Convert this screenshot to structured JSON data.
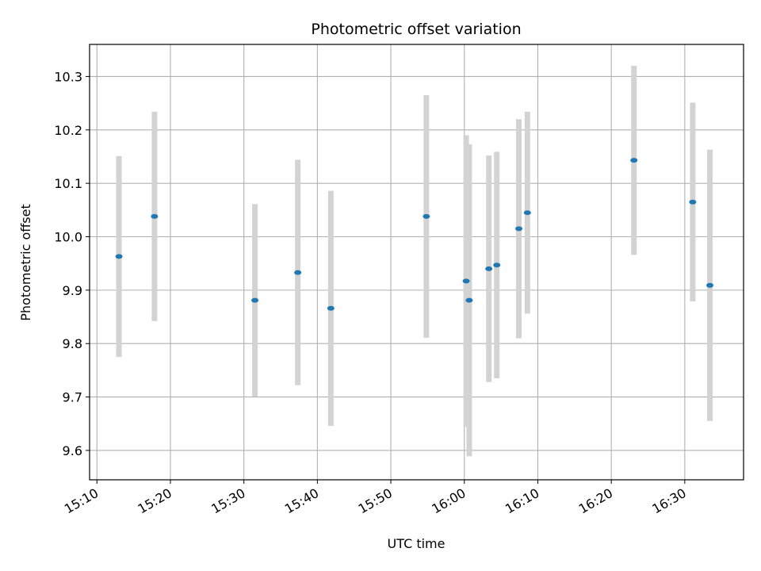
{
  "chart_data": {
    "type": "scatter",
    "title": "Photometric offset variation",
    "xlabel": "UTC time",
    "ylabel": "Photometric offset",
    "grid": true,
    "xlim": [
      "15:09",
      "16:38"
    ],
    "ylim": [
      9.545,
      10.36
    ],
    "x_ticks": [
      "15:10",
      "15:20",
      "15:30",
      "15:40",
      "15:50",
      "16:00",
      "16:10",
      "16:20",
      "16:30"
    ],
    "y_ticks": [
      9.6,
      9.7,
      9.8,
      9.9,
      10.0,
      10.1,
      10.2,
      10.3
    ],
    "y_tick_labels": [
      "9.6",
      "9.7",
      "9.8",
      "9.9",
      "10.0",
      "10.1",
      "10.2",
      "10.3"
    ],
    "points_color": "#1f77b4",
    "errorbar_color": "#d3d3d3",
    "points": [
      {
        "time": "15:13:00",
        "y": 9.963,
        "err": 0.188
      },
      {
        "time": "15:17:50",
        "y": 10.038,
        "err": 0.196
      },
      {
        "time": "15:31:30",
        "y": 9.881,
        "err": 0.18
      },
      {
        "time": "15:37:20",
        "y": 9.933,
        "err": 0.211
      },
      {
        "time": "15:41:50",
        "y": 9.866,
        "err": 0.22
      },
      {
        "time": "15:54:50",
        "y": 10.038,
        "err": 0.227
      },
      {
        "time": "16:00:15",
        "y": 9.917,
        "err": 0.273
      },
      {
        "time": "16:00:40",
        "y": 9.881,
        "err": 0.292
      },
      {
        "time": "16:03:20",
        "y": 9.94,
        "err": 0.212
      },
      {
        "time": "16:04:25",
        "y": 9.947,
        "err": 0.212
      },
      {
        "time": "16:07:25",
        "y": 10.015,
        "err": 0.205
      },
      {
        "time": "16:08:35",
        "y": 10.045,
        "err": 0.189
      },
      {
        "time": "16:23:05",
        "y": 10.143,
        "err": 0.177
      },
      {
        "time": "16:31:05",
        "y": 10.065,
        "err": 0.186
      },
      {
        "time": "16:33:25",
        "y": 9.909,
        "err": 0.254
      }
    ]
  }
}
